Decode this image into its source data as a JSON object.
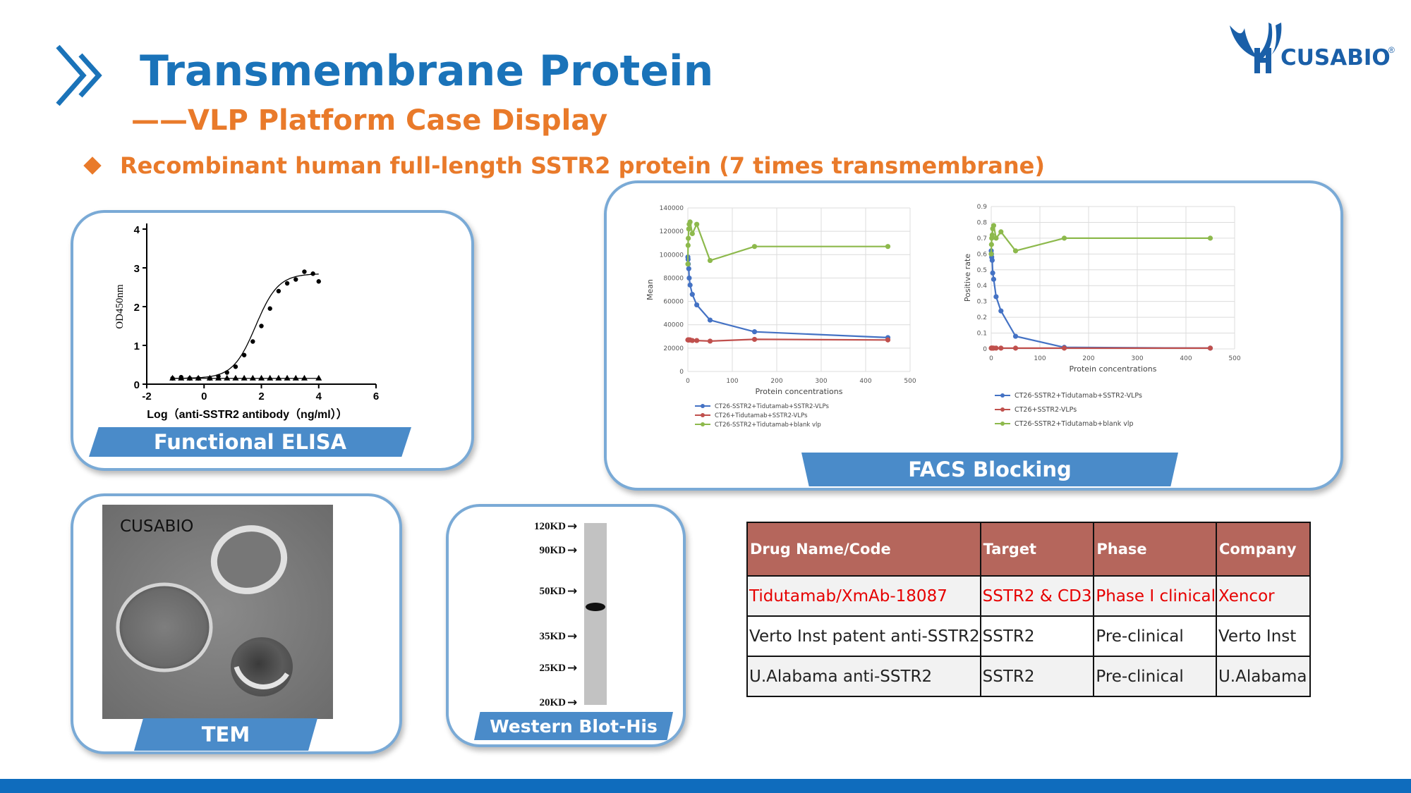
{
  "header": {
    "title": "Transmembrane Protein",
    "subtitle": "——VLP Platform Case Display",
    "bullet": "Recombinant human full-length SSTR2 protein (7 times transmembrane)"
  },
  "logo": {
    "text": "CUSABIO",
    "reg": "®"
  },
  "colors": {
    "title_blue": "#1a73b9",
    "accent_orange": "#e97a2a",
    "banner_blue": "#4a8bc9",
    "panel_border": "#7aaad6",
    "table_header": "#b5665c",
    "highlight_red": "#e60000",
    "footer_blue": "#0f6cbd"
  },
  "panels": {
    "elisa": {
      "label": "Functional ELISA"
    },
    "facs": {
      "label": "FACS Blocking"
    },
    "tem": {
      "label": "TEM",
      "watermark": "CUSABIO"
    },
    "western": {
      "label": "Western Blot-His"
    }
  },
  "chart_data": [
    {
      "type": "scatter",
      "name": "Functional ELISA",
      "xlabel": "Log（anti-SSTR2 antibody（ng/ml））",
      "ylabel": "OD450nm",
      "xlim": [
        -2,
        6
      ],
      "ylim": [
        0,
        4
      ],
      "xticks": [
        "-2",
        "0",
        "2",
        "4",
        "6"
      ],
      "yticks": [
        "0",
        "1",
        "2",
        "3",
        "4"
      ],
      "series": [
        {
          "marker": "circle",
          "fit": "sigmoid",
          "x": [
            -1.1,
            -0.8,
            -0.5,
            -0.2,
            0.2,
            0.5,
            0.8,
            1.1,
            1.4,
            1.7,
            2.0,
            2.3,
            2.6,
            2.9,
            3.2,
            3.5,
            3.8,
            4.0
          ],
          "y": [
            0.15,
            0.18,
            0.15,
            0.15,
            0.15,
            0.2,
            0.3,
            0.45,
            0.75,
            1.1,
            1.5,
            1.95,
            2.4,
            2.6,
            2.7,
            2.9,
            2.85,
            2.65
          ]
        },
        {
          "marker": "triangle",
          "x": [
            -1.1,
            -0.8,
            -0.5,
            -0.2,
            0.2,
            0.5,
            0.8,
            1.1,
            1.4,
            1.7,
            2.0,
            2.3,
            2.6,
            2.9,
            3.2,
            3.5,
            4.0
          ],
          "y": [
            0.15,
            0.15,
            0.15,
            0.15,
            0.15,
            0.15,
            0.15,
            0.15,
            0.15,
            0.15,
            0.15,
            0.15,
            0.15,
            0.15,
            0.15,
            0.15,
            0.15
          ]
        }
      ]
    },
    {
      "type": "line",
      "name": "FACS Mean",
      "xlabel": "Protein concentrations",
      "ylabel": "Mean",
      "xlim": [
        0,
        500
      ],
      "ylim": [
        0,
        140000
      ],
      "xticks": [
        "0",
        "100",
        "200",
        "300",
        "400",
        "500"
      ],
      "yticks": [
        "0",
        "20000",
        "40000",
        "60000",
        "80000",
        "100000",
        "120000",
        "140000"
      ],
      "series": [
        {
          "name": "CT26-SSTR2+Tidutamab+SSTR2-VLPs",
          "color": "#4472c4",
          "x": [
            0,
            0.5,
            1,
            2,
            3,
            5,
            10,
            20,
            50,
            150,
            450
          ],
          "y": [
            98000,
            96000,
            92000,
            88000,
            80000,
            74000,
            66000,
            57000,
            44000,
            34000,
            29000
          ]
        },
        {
          "name": "CT26+Tidutamab+SSTR2-VLPs",
          "color": "#c0504d",
          "x": [
            0,
            0.5,
            1,
            2,
            3,
            5,
            10,
            20,
            50,
            150,
            450
          ],
          "y": [
            27000,
            27000,
            27000,
            27000,
            27000,
            27000,
            26500,
            26500,
            26000,
            27500,
            27000
          ]
        },
        {
          "name": "CT26-SSTR2+Tidutamab+blank vlp",
          "color": "#8db94c",
          "x": [
            0,
            0.5,
            1,
            2,
            3,
            5,
            10,
            20,
            50,
            150,
            450
          ],
          "y": [
            92000,
            108000,
            114000,
            122000,
            126000,
            128000,
            118000,
            126000,
            95000,
            107000,
            107000
          ]
        }
      ]
    },
    {
      "type": "line",
      "name": "FACS Positive rate",
      "xlabel": "Protein concentrations",
      "ylabel": "Positive rate",
      "xlim": [
        0,
        500
      ],
      "ylim": [
        0,
        0.9
      ],
      "xticks": [
        "0",
        "100",
        "200",
        "300",
        "400",
        "500"
      ],
      "yticks": [
        "0",
        "0.1",
        "0.2",
        "0.3",
        "0.4",
        "0.5",
        "0.6",
        "0.7",
        "0.8",
        "0.9"
      ],
      "series": [
        {
          "name": "CT26-SSTR2+Tidutamab+SSTR2-VLPs",
          "color": "#4472c4",
          "x": [
            0,
            0.5,
            1,
            2,
            3,
            5,
            10,
            20,
            50,
            150,
            450
          ],
          "y": [
            0.62,
            0.6,
            0.58,
            0.56,
            0.48,
            0.44,
            0.33,
            0.24,
            0.08,
            0.01,
            0.005
          ]
        },
        {
          "name": "CT26+SSTR2-VLPs",
          "color": "#c0504d",
          "x": [
            0,
            0.5,
            1,
            2,
            3,
            5,
            10,
            20,
            50,
            150,
            450
          ],
          "y": [
            0.005,
            0.005,
            0.005,
            0.005,
            0.005,
            0.005,
            0.005,
            0.005,
            0.005,
            0.005,
            0.005
          ]
        },
        {
          "name": "CT26-SSTR2+Tidutamab+blank vlp",
          "color": "#8db94c",
          "x": [
            0,
            0.5,
            1,
            2,
            3,
            5,
            10,
            20,
            50,
            150,
            450
          ],
          "y": [
            0.6,
            0.66,
            0.7,
            0.72,
            0.76,
            0.78,
            0.7,
            0.74,
            0.62,
            0.7,
            0.7
          ]
        }
      ]
    }
  ],
  "western_blot": {
    "markers": [
      "120KD",
      "90KD",
      "50KD",
      "35KD",
      "25KD",
      "20KD"
    ],
    "arrow": "→"
  },
  "table": {
    "headers": [
      "Drug Name/Code",
      "Target",
      "Phase",
      "Company"
    ],
    "rows": [
      [
        "Tidutamab/XmAb-18087",
        "SSTR2 & CD3",
        "Phase I clinical",
        "Xencor"
      ],
      [
        "Verto Inst patent anti-SSTR2",
        "SSTR2",
        "Pre-clinical",
        "Verto Inst"
      ],
      [
        "U.Alabama anti-SSTR2",
        "SSTR2",
        "Pre-clinical",
        "U.Alabama"
      ]
    ]
  }
}
